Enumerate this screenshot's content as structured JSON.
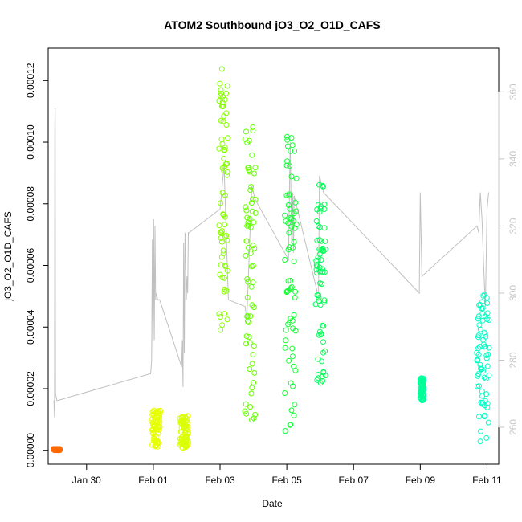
{
  "chart_data": {
    "type": "scatter",
    "title": "ATOM2 Southbound jO3_O2_O1D_CAFS",
    "xlabel": "Date",
    "ylabel": "jO3_O2_O1D_CAFS",
    "x_ticks": [
      "Jan 30",
      "Feb 01",
      "Feb 03",
      "Feb 05",
      "Feb 07",
      "Feb 09",
      "Feb 11"
    ],
    "x_tick_values": [
      0,
      2,
      4,
      6,
      8,
      10,
      12
    ],
    "xlim": [
      -1.15,
      12.35
    ],
    "ylim": [
      -4.5e-06,
      0.0001305
    ],
    "y_ticks": [
      "0.00000",
      "0.00002",
      "0.00004",
      "0.00006",
      "0.00008",
      "0.00010",
      "0.00012"
    ],
    "y_tick_values": [
      0,
      2e-05,
      4e-05,
      6e-05,
      8e-05,
      0.0001,
      0.00012
    ],
    "y2lim": [
      249,
      373
    ],
    "y2_ticks": [
      "260",
      "280",
      "300",
      "320",
      "340",
      "360"
    ],
    "y2_tick_values": [
      260,
      280,
      300,
      320,
      340,
      360
    ],
    "grid": false,
    "colors": {
      "secondary_line": "#c0c0c0",
      "axis": "#000000",
      "right_axis": "#c8c8c8"
    },
    "series": [
      {
        "marker": "circle",
        "segments": [
          {
            "color": "#ff6a00",
            "x0": -0.98,
            "x1": -0.8,
            "ymin": 0.0,
            "ymax": 5e-07
          },
          {
            "color": "#e6ff00",
            "x0": 1.95,
            "x1": 2.2,
            "ymin": 1e-06,
            "ymax": 1.3e-05
          },
          {
            "color": "#d9ff00",
            "x0": 2.8,
            "x1": 3.05,
            "ymin": 5e-07,
            "ymax": 1.15e-05
          },
          {
            "color": "#88ff00",
            "x0": 3.98,
            "x1": 4.22,
            "ymin": 3.7e-05,
            "ymax": 0.000126
          },
          {
            "color": "#66ff00",
            "x0": 4.75,
            "x1": 5.05,
            "ymin": 8e-06,
            "ymax": 0.000105
          },
          {
            "color": "#11ff33",
            "x0": 5.95,
            "x1": 6.28,
            "ymin": 6e-06,
            "ymax": 0.000104
          },
          {
            "color": "#00ff55",
            "x0": 6.88,
            "x1": 7.15,
            "ymin": 2e-05,
            "ymax": 8.8e-05
          },
          {
            "color": "#00ff99",
            "x0": 10.0,
            "x1": 10.1,
            "ymin": 1.6e-05,
            "ymax": 2.35e-05
          },
          {
            "color": "#00ffc4",
            "x0": 11.7,
            "x1": 12.05,
            "ymin": 2.5e-06,
            "ymax": 5.1e-05
          }
        ]
      },
      {
        "type": "line",
        "axis": "right",
        "x": [
          -0.98,
          -0.96,
          -0.95,
          -0.94,
          -0.93,
          -0.91,
          -0.89,
          -0.87,
          -0.86,
          1.92,
          1.95,
          1.97,
          1.99,
          2.01,
          2.03,
          2.05,
          2.07,
          2.09,
          2.11,
          2.13,
          2.15,
          2.17,
          2.19,
          2.85,
          2.87,
          2.89,
          2.91,
          2.93,
          2.95,
          2.97,
          2.99,
          3.01,
          3.03,
          3.05,
          3.07,
          4.0,
          4.12,
          4.25,
          4.75,
          4.8,
          4.95,
          5.05,
          6.05,
          6.1,
          6.15,
          6.18,
          6.2,
          6.22,
          6.92,
          6.95,
          6.98,
          7.1,
          9.97,
          10.0,
          10.05,
          11.7,
          11.75,
          11.8,
          11.85,
          11.9,
          11.95,
          12.0,
          12.05
        ],
        "y": [
          268,
          263,
          350,
          355,
          270,
          269,
          268,
          268,
          268,
          276,
          280,
          316,
          282,
          322,
          286,
          320,
          298,
          300,
          299,
          298,
          298,
          298,
          298,
          278,
          286,
          272,
          315,
          282,
          318,
          310,
          298,
          305,
          300,
          318,
          318,
          325,
          338,
          298,
          296,
          292,
          332,
          328,
          310,
          345,
          312,
          330,
          312,
          329,
          300,
          300,
          335,
          330,
          300,
          330,
          305,
          320,
          318,
          330,
          322,
          308,
          296,
          325,
          330
        ]
      }
    ]
  }
}
